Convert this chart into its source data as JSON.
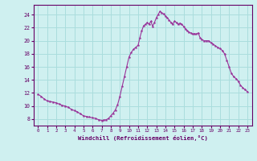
{
  "xlabel": "Windchill (Refroidissement éolien,°C)",
  "background_color": "#cff0f0",
  "grid_color": "#aadddd",
  "line_color": "#993399",
  "marker_color": "#993399",
  "xlim": [
    -0.5,
    23.5
  ],
  "ylim": [
    7.0,
    25.5
  ],
  "yticks": [
    8,
    10,
    12,
    14,
    16,
    18,
    20,
    22,
    24
  ],
  "xticks": [
    0,
    1,
    2,
    3,
    4,
    5,
    6,
    7,
    8,
    9,
    10,
    11,
    12,
    13,
    14,
    15,
    16,
    17,
    18,
    19,
    20,
    21,
    22,
    23
  ],
  "x_fine": [
    0,
    0.33,
    0.66,
    1,
    1.33,
    1.66,
    2,
    2.33,
    2.66,
    3,
    3.33,
    3.66,
    4,
    4.33,
    4.66,
    5,
    5.33,
    5.66,
    6,
    6.33,
    6.66,
    7,
    7.25,
    7.5,
    7.75,
    8,
    8.25,
    8.5,
    8.75,
    9,
    9.25,
    9.5,
    9.75,
    10,
    10.25,
    10.5,
    10.75,
    11,
    11.2,
    11.4,
    11.6,
    11.8,
    12,
    12.2,
    12.4,
    12.6,
    12.8,
    13,
    13.2,
    13.4,
    13.6,
    13.8,
    14,
    14.2,
    14.4,
    14.6,
    14.8,
    15,
    15.2,
    15.4,
    15.6,
    15.8,
    16,
    16.2,
    16.4,
    16.6,
    16.8,
    17,
    17.2,
    17.4,
    17.6,
    17.8,
    18,
    18.25,
    18.5,
    18.75,
    19,
    19.25,
    19.5,
    19.75,
    20,
    20.25,
    20.5,
    20.75,
    21,
    21.25,
    21.5,
    21.75,
    22,
    22.25,
    22.5,
    22.75,
    23
  ],
  "y_fine": [
    11.8,
    11.5,
    11.1,
    10.8,
    10.7,
    10.6,
    10.5,
    10.3,
    10.1,
    10.0,
    9.8,
    9.5,
    9.3,
    9.1,
    8.8,
    8.5,
    8.4,
    8.3,
    8.2,
    8.1,
    7.9,
    7.8,
    7.85,
    7.9,
    8.1,
    8.5,
    8.9,
    9.4,
    10.2,
    11.5,
    13.0,
    14.5,
    16.0,
    17.5,
    18.2,
    18.7,
    19.0,
    19.3,
    20.5,
    21.5,
    22.3,
    22.5,
    22.8,
    22.5,
    23.0,
    22.2,
    22.8,
    23.5,
    24.0,
    24.5,
    24.3,
    24.1,
    23.8,
    23.5,
    23.2,
    22.8,
    22.5,
    23.0,
    22.8,
    22.5,
    22.7,
    22.5,
    22.2,
    21.8,
    21.5,
    21.3,
    21.2,
    21.0,
    21.1,
    21.0,
    21.2,
    20.5,
    20.2,
    20.0,
    20.0,
    20.0,
    19.7,
    19.5,
    19.2,
    19.0,
    18.8,
    18.5,
    18.0,
    17.0,
    16.0,
    15.0,
    14.5,
    14.2,
    13.8,
    13.2,
    12.8,
    12.5,
    12.2
  ]
}
